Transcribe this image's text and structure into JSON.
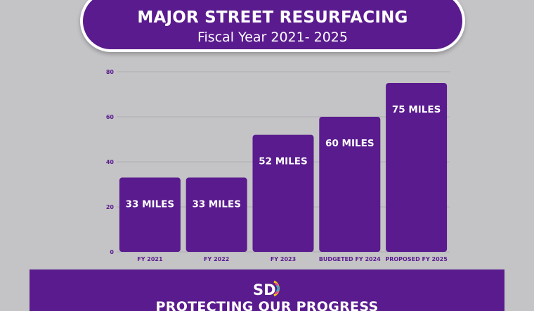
{
  "header": {
    "title": "MAJOR STREET RESURFACING",
    "subtitle": "Fiscal Year 2021- 2025"
  },
  "chart_data": {
    "type": "bar",
    "categories": [
      "FY 2021",
      "FY 2022",
      "FY 2023",
      "BUDGETED FY 2024",
      "PROPOSED FY 2025"
    ],
    "values": [
      33,
      33,
      52,
      60,
      75
    ],
    "data_labels": [
      "33 MILES",
      "33 MILES",
      "52 MILES",
      "60 MILES",
      "75 MILES"
    ],
    "yticks": [
      0,
      20,
      40,
      60,
      80
    ],
    "ylim": [
      0,
      80
    ],
    "grid": true,
    "bar_color": "#5a1b8e"
  },
  "footer": {
    "logo_text": "SD",
    "tagline": "PROTECTING OUR PROGRESS"
  }
}
